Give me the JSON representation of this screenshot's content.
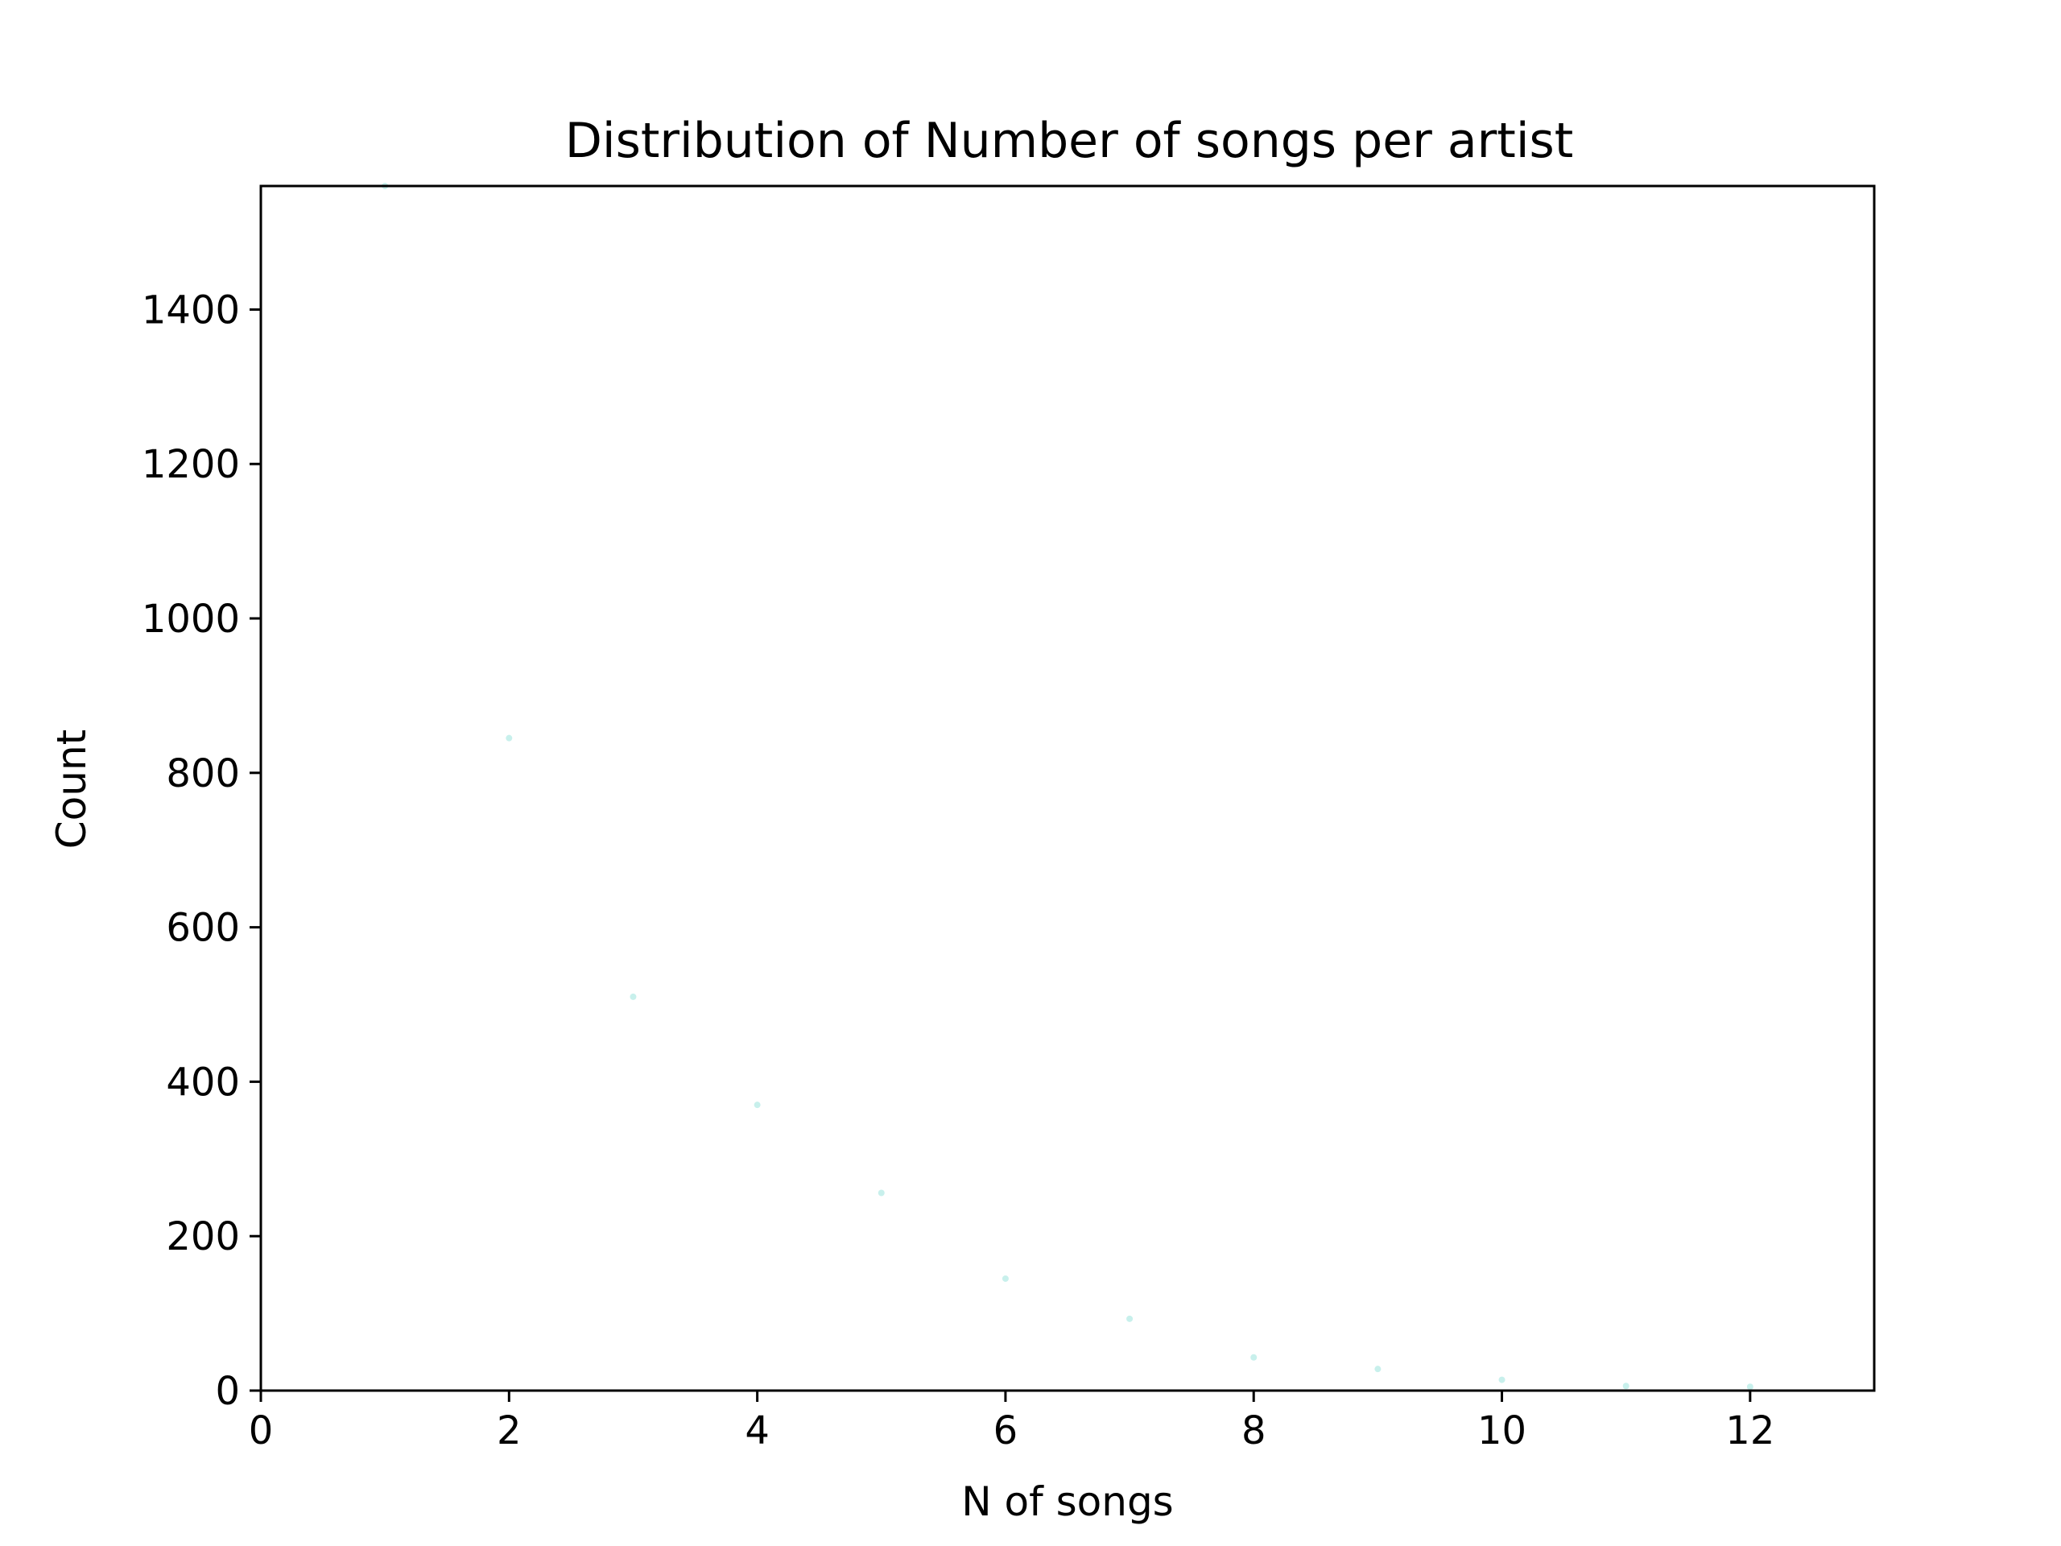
{
  "chart_data": {
    "type": "scatter",
    "title": "Distribution of Number of songs per artist",
    "xlabel": "N of songs",
    "ylabel": "Count",
    "xlim": [
      0,
      13
    ],
    "ylim": [
      0,
      1560
    ],
    "xticks": [
      0,
      2,
      4,
      6,
      8,
      10,
      12
    ],
    "yticks": [
      0,
      200,
      400,
      600,
      800,
      1000,
      1200,
      1400
    ],
    "grid": false,
    "marker_color": "#c8f0ec",
    "points": [
      {
        "x": 1,
        "y": 1560
      },
      {
        "x": 2,
        "y": 845
      },
      {
        "x": 3,
        "y": 510
      },
      {
        "x": 4,
        "y": 370
      },
      {
        "x": 5,
        "y": 256
      },
      {
        "x": 6,
        "y": 145
      },
      {
        "x": 7,
        "y": 93
      },
      {
        "x": 8,
        "y": 43
      },
      {
        "x": 9,
        "y": 28
      },
      {
        "x": 10,
        "y": 14
      },
      {
        "x": 11,
        "y": 6
      },
      {
        "x": 12,
        "y": 5
      }
    ]
  }
}
